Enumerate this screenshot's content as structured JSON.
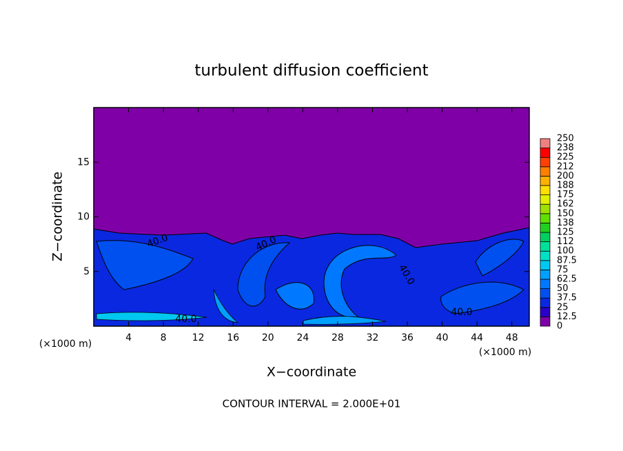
{
  "chart_data": {
    "type": "contour",
    "title": "turbulent diffusion coefficient",
    "xlabel": "X−coordinate",
    "ylabel": "Z−coordinate",
    "x_unit": "(×1000 m)",
    "footnote": "CONTOUR INTERVAL = 2.000E+01",
    "xlim": [
      0,
      50
    ],
    "xticks": [
      4,
      8,
      12,
      16,
      20,
      24,
      28,
      32,
      36,
      40,
      44,
      48
    ],
    "ylim": [
      0,
      20
    ],
    "yticks": [
      5,
      10,
      15
    ],
    "contour_labels": [
      "40.0",
      "40.0",
      "40.0",
      "40.0",
      "40.0"
    ],
    "colorbar": {
      "levels": [
        0,
        12.5,
        25,
        37.5,
        50,
        62.5,
        75,
        87.5,
        100,
        {
          "value": 112.5,
          "label": "112"
        },
        125,
        {
          "value": 137.5,
          "label": "138"
        },
        150,
        {
          "value": 162.5,
          "label": "162"
        },
        175,
        {
          "value": 187.5,
          "label": "188"
        },
        200,
        {
          "value": 212.5,
          "label": "212"
        },
        225,
        {
          "value": 237.5,
          "label": "238"
        },
        250
      ],
      "colors": [
        "#8000a8",
        "#2a00c8",
        "#0a28e0",
        "#0050f0",
        "#0078ff",
        "#00a0ff",
        "#00c8f0",
        "#00e0c8",
        "#00e098",
        "#00d060",
        "#20d020",
        "#60e000",
        "#a0e000",
        "#e0f000",
        "#ffe000",
        "#ffb000",
        "#ff8000",
        "#ff4000",
        "#ff0000",
        "#f08080"
      ]
    }
  }
}
